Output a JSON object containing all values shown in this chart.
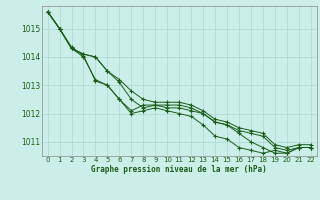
{
  "title": "Graphe pression niveau de la mer (hPa)",
  "bg_color": "#cceee8",
  "grid_color": "#aad8d2",
  "line_color": "#1a5c1a",
  "marker_color": "#1a5c1a",
  "xlim": [
    -0.5,
    22.5
  ],
  "ylim": [
    1010.5,
    1015.8
  ],
  "yticks": [
    1011,
    1012,
    1013,
    1014,
    1015
  ],
  "xticks": [
    0,
    1,
    2,
    3,
    4,
    5,
    6,
    7,
    8,
    9,
    10,
    11,
    12,
    13,
    14,
    15,
    16,
    17,
    18,
    19,
    20,
    21,
    22
  ],
  "series": [
    [
      1015.6,
      1015.0,
      1014.3,
      1014.0,
      1013.2,
      1013.0,
      1012.5,
      1012.1,
      1012.3,
      1012.3,
      1012.3,
      1012.3,
      1012.2,
      1012.0,
      1011.7,
      1011.6,
      1011.4,
      1011.3,
      1011.2,
      1010.8,
      1010.7,
      1010.8,
      1010.8
    ],
    [
      1015.6,
      1015.0,
      1014.3,
      1014.1,
      1014.0,
      1013.5,
      1013.2,
      1012.8,
      1012.5,
      1012.4,
      1012.4,
      1012.4,
      1012.3,
      1012.1,
      1011.8,
      1011.7,
      1011.5,
      1011.4,
      1011.3,
      1010.9,
      1010.8,
      1010.9,
      1010.9
    ],
    [
      1015.6,
      1015.0,
      1014.3,
      1014.1,
      1014.0,
      1013.5,
      1013.1,
      1012.5,
      1012.2,
      1012.3,
      1012.2,
      1012.2,
      1012.1,
      1012.0,
      1011.7,
      1011.6,
      1011.3,
      1011.0,
      1010.8,
      1010.6,
      1010.6,
      1010.8,
      1010.8
    ],
    [
      1015.6,
      1015.0,
      1014.35,
      1014.05,
      1013.15,
      1013.0,
      1012.5,
      1012.0,
      1012.1,
      1012.2,
      1012.1,
      1012.0,
      1011.9,
      1011.6,
      1011.2,
      1011.1,
      1010.8,
      1010.7,
      1010.6,
      1010.7,
      1010.6,
      1010.8,
      1010.8
    ]
  ]
}
